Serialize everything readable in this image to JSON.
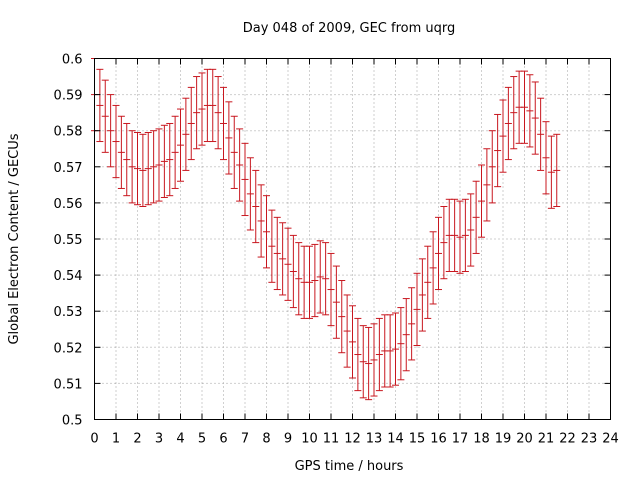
{
  "chart_data": {
    "type": "errorbar",
    "title": "Day 048 of 2009, GEC from uqrg",
    "xlabel": "GPS time / hours",
    "ylabel": "Global Electron Content / GECUs",
    "xlim": [
      0,
      24
    ],
    "ylim": [
      0.5,
      0.6
    ],
    "x_ticks": [
      0,
      1,
      2,
      3,
      4,
      5,
      6,
      7,
      8,
      9,
      10,
      11,
      12,
      13,
      14,
      15,
      16,
      17,
      18,
      19,
      20,
      21,
      22,
      23,
      24
    ],
    "y_ticks": [
      0.5,
      0.51,
      0.52,
      0.53,
      0.54,
      0.55,
      0.56,
      0.57,
      0.58,
      0.59,
      0.6
    ],
    "y_tick_labels": [
      "0.5",
      "0.51",
      "0.52",
      "0.53",
      "0.54",
      "0.55",
      "0.56",
      "0.57",
      "0.58",
      "0.59",
      "0.6"
    ],
    "grid": true,
    "error": 0.01,
    "series": [
      {
        "name": "GEC",
        "color": "#c8171f",
        "x_start": 0,
        "x_step": 0.25,
        "values": [
          0.59,
          0.587,
          0.584,
          0.58,
          0.577,
          0.574,
          0.572,
          0.57,
          0.5695,
          0.569,
          0.5695,
          0.57,
          0.5705,
          0.5715,
          0.572,
          0.574,
          0.576,
          0.579,
          0.582,
          0.585,
          0.586,
          0.587,
          0.587,
          0.585,
          0.582,
          0.578,
          0.574,
          0.5705,
          0.5665,
          0.5625,
          0.559,
          0.555,
          0.552,
          0.548,
          0.546,
          0.5445,
          0.543,
          0.541,
          0.539,
          0.538,
          0.538,
          0.5385,
          0.5395,
          0.539,
          0.536,
          0.5325,
          0.5285,
          0.5245,
          0.5215,
          0.518,
          0.516,
          0.5155,
          0.5165,
          0.518,
          0.519,
          0.519,
          0.5195,
          0.521,
          0.5235,
          0.5265,
          0.5305,
          0.5345,
          0.538,
          0.542,
          0.546,
          0.549,
          0.551,
          0.551,
          0.5505,
          0.551,
          0.5525,
          0.556,
          0.5605,
          0.565,
          0.57,
          0.5745,
          0.5785,
          0.582,
          0.585,
          0.5865,
          0.5865,
          0.5855,
          0.5835,
          0.579,
          0.5725,
          0.5685,
          0.569
        ]
      }
    ]
  }
}
